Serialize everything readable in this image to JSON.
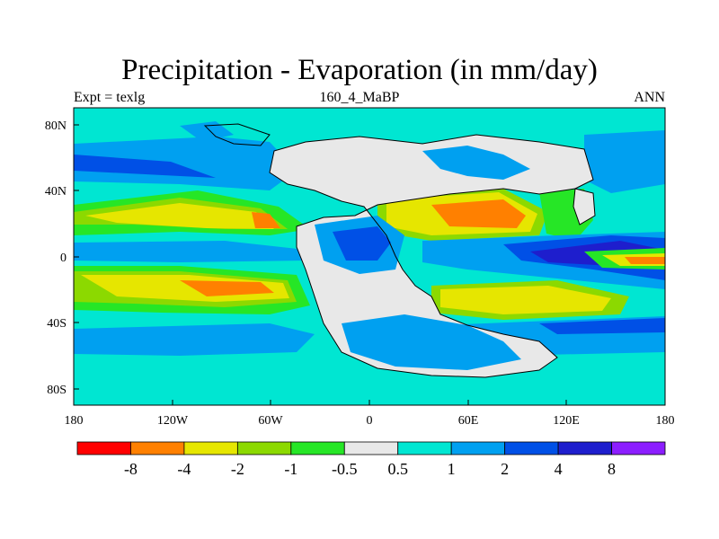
{
  "title": "Precipitation - Evaporation (in mm/day)",
  "left_label": "Expt = texlg",
  "center_label": "160_4_MaBP",
  "right_label": "ANN",
  "map": {
    "projection": "cylindrical equidistant",
    "lon_range": [
      -180,
      180
    ],
    "lat_range": [
      -90,
      90
    ]
  },
  "axes": {
    "x_ticks": [
      "180",
      "120W",
      "60W",
      "0",
      "60E",
      "120E",
      "180"
    ],
    "y_ticks": [
      "80N",
      "40N",
      "0",
      "40S",
      "80S"
    ]
  },
  "colorbar": {
    "colors": [
      "#ff0000",
      "#ff8000",
      "#e6e600",
      "#8cd900",
      "#26e626",
      "#e8e8e8",
      "#00e6d2",
      "#00a0f0",
      "#0050e6",
      "#1e1ecd",
      "#8c1eff"
    ],
    "labels": [
      "-8",
      "-4",
      "-2",
      "-1",
      "-0.5",
      "0.5",
      "1",
      "2",
      "4",
      "8"
    ]
  }
}
